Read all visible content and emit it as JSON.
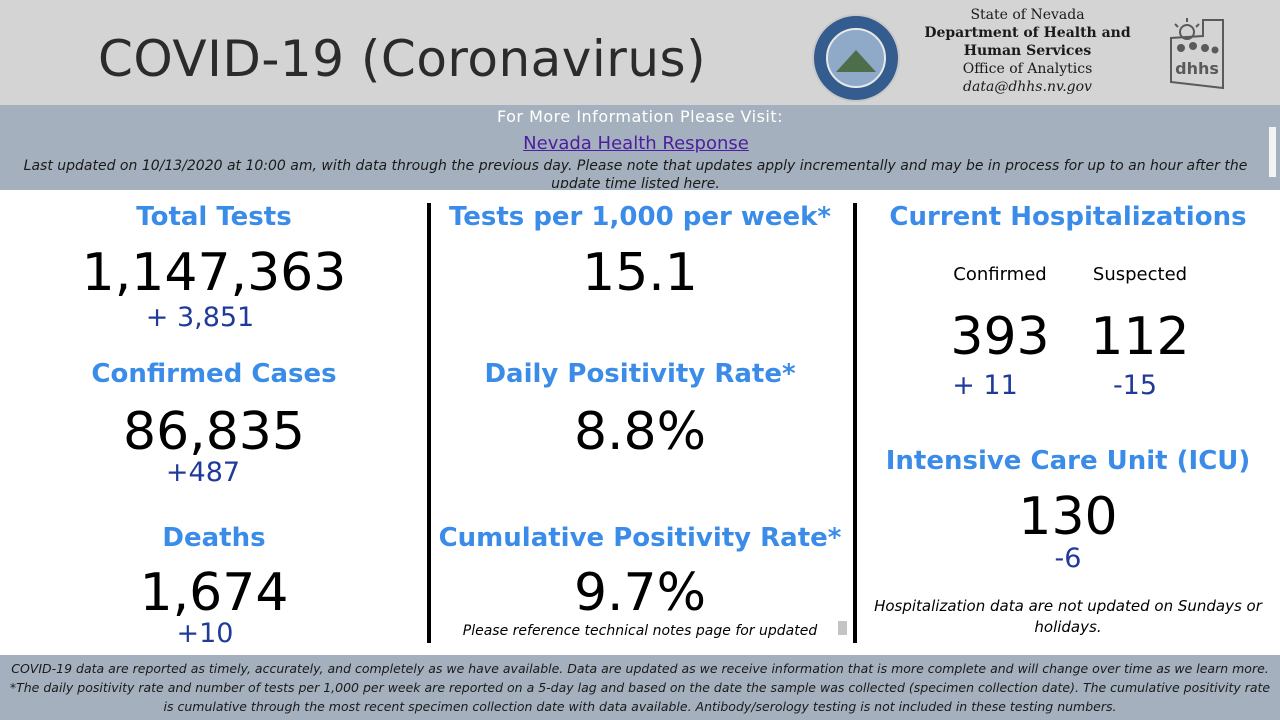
{
  "header": {
    "title": "COVID-19 (Coronavirus)",
    "agency_line1": "State of Nevada",
    "agency_line2": "Department of Health and",
    "agency_line3": "Human Services",
    "agency_line4": "Office of Analytics",
    "agency_email": "data@dhhs.nv.gov",
    "seal_icon": "nevada-state-seal",
    "logo_icon": "dhhs-logo",
    "background": "#d4d4d4"
  },
  "info": {
    "heading": "For More Information Please Visit:",
    "link_text": "Nevada Health Response",
    "note": "Last updated on 10/13/2020 at 10:00 am, with data through the previous day.  Please note that updates apply incrementally and may be in process for up to an hour after the update time listed here.",
    "background": "#a4b0bd"
  },
  "metrics": {
    "total_tests": {
      "label": "Total Tests",
      "value": "1,147,363",
      "delta": "+ 3,851"
    },
    "confirmed_cases": {
      "label": "Confirmed Cases",
      "value": "86,835",
      "delta": "+487"
    },
    "deaths": {
      "label": "Deaths",
      "value": "1,674",
      "delta": "+10"
    },
    "tests_per_1000": {
      "label": "Tests per 1,000 per week*",
      "value": "15.1"
    },
    "daily_positivity": {
      "label": "Daily Positivity Rate*",
      "value": "8.8%"
    },
    "cumulative_positivity": {
      "label": "Cumulative Positivity Rate*",
      "value": "9.7%",
      "note": "Please reference technical notes page for updated"
    },
    "hospitalizations": {
      "label": "Current Hospitalizations",
      "confirmed_label": "Confirmed",
      "suspected_label": "Suspected",
      "confirmed_value": "393",
      "suspected_value": "112",
      "confirmed_delta": "+ 11",
      "suspected_delta": "-15"
    },
    "icu": {
      "label": "Intensive Care Unit (ICU)",
      "value": "130",
      "delta": "-6"
    },
    "hosp_note": "Hospitalization data are not updated on Sundays or holidays."
  },
  "footer": {
    "line1": "COVID-19 data are reported as timely, accurately, and completely as we have available.  Data are updated as we receive information that is more complete and will change over time as we learn more.",
    "line2": "*The daily positivity rate and number of tests per 1,000 per week are reported on a 5-day lag and based on the date the sample was collected (specimen collection date).  The cumulative positivity rate is cumulative through the most recent specimen collection date with data available.  Antibody/serology testing is not included in these testing numbers."
  },
  "colors": {
    "label_blue": "#3a8ce8",
    "delta_blue": "#203a9a",
    "link_purple": "#4b1fa0"
  }
}
